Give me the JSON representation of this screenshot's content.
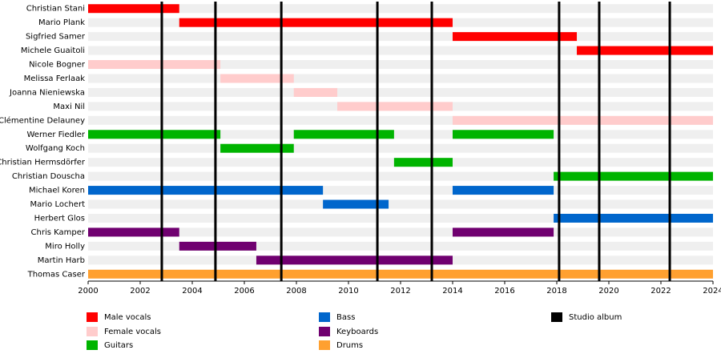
{
  "chart_data": {
    "type": "timeline",
    "categories": [
      "Christian Stani",
      "Mario Plank",
      "Sigfried Samer",
      "Michele Guaitoli",
      "Nicole Bogner",
      "Melissa Ferlaak",
      "Joanna Nieniewska",
      "Maxi Nil",
      "Clémentine Delauney",
      "Werner Fiedler",
      "Wolfgang Koch",
      "Christian Hermsdörfer",
      "Christian Douscha",
      "Michael Koren",
      "Mario Lochert",
      "Herbert Glos",
      "Chris Kamper",
      "Miro Holly",
      "Martin Harb",
      "Thomas Caser"
    ],
    "series": [
      {
        "name": "Male vocals",
        "color": "#ff0000",
        "spans": [
          [
            [
              2000,
              2003.5
            ]
          ],
          [
            [
              2003.5,
              2014
            ]
          ],
          [
            [
              2014,
              2018.77
            ]
          ],
          [
            [
              2018.77,
              2024
            ]
          ],
          [],
          [],
          [],
          [],
          [],
          [],
          [],
          [],
          [],
          [],
          [],
          [],
          [],
          [],
          [],
          []
        ]
      },
      {
        "name": "Female vocals",
        "color": "#ffcccc",
        "spans": [
          [],
          [],
          [],
          [],
          [
            [
              2000,
              2005.08
            ]
          ],
          [
            [
              2005.08,
              2007.9
            ]
          ],
          [
            [
              2007.9,
              2009.57
            ]
          ],
          [
            [
              2009.57,
              2014
            ]
          ],
          [
            [
              2014,
              2024
            ]
          ],
          [],
          [],
          [],
          [],
          [],
          [],
          [],
          [],
          [],
          [],
          []
        ]
      },
      {
        "name": "Guitars",
        "color": "#00b400",
        "spans": [
          [],
          [],
          [],
          [],
          [],
          [],
          [],
          [],
          [],
          [
            [
              2000,
              2005.08
            ],
            [
              2007.9,
              2011.75
            ],
            [
              2014,
              2017.88
            ]
          ],
          [
            [
              2005.08,
              2007.9
            ]
          ],
          [
            [
              2011.75,
              2014
            ]
          ],
          [
            [
              2017.88,
              2024
            ]
          ],
          [],
          [],
          [],
          [],
          [],
          [],
          []
        ]
      },
      {
        "name": "Bass",
        "color": "#0066cc",
        "spans": [
          [],
          [],
          [],
          [],
          [],
          [],
          [],
          [],
          [],
          [],
          [],
          [],
          [],
          [
            [
              2000,
              2009.02
            ],
            [
              2014,
              2017.88
            ]
          ],
          [
            [
              2009.02,
              2011.54
            ]
          ],
          [
            [
              2017.88,
              2024
            ]
          ],
          [],
          [],
          [],
          []
        ]
      },
      {
        "name": "Keyboards",
        "color": "#700070",
        "spans": [
          [],
          [],
          [],
          [],
          [],
          [],
          [],
          [],
          [],
          [],
          [],
          [],
          [],
          [],
          [],
          [],
          [
            [
              2000,
              2003.5
            ],
            [
              2014,
              2017.88
            ]
          ],
          [
            [
              2003.5,
              2006.46
            ]
          ],
          [
            [
              2006.46,
              2014
            ]
          ],
          []
        ]
      },
      {
        "name": "Drums",
        "color": "#ffa030",
        "spans": [
          [],
          [],
          [],
          [],
          [],
          [],
          [],
          [],
          [],
          [],
          [],
          [],
          [],
          [],
          [],
          [],
          [],
          [],
          [],
          [
            [
              2000,
              2024
            ]
          ]
        ]
      }
    ],
    "albums": {
      "name": "Studio album",
      "color": "#000000",
      "x": [
        2002.83,
        2004.89,
        2007.42,
        2011.11,
        2013.2,
        2018.09,
        2019.63,
        2022.34
      ]
    },
    "xlim": [
      2000,
      2024
    ],
    "xticks": [
      2000,
      2002,
      2004,
      2006,
      2008,
      2010,
      2012,
      2014,
      2016,
      2018,
      2020,
      2022,
      2024
    ]
  }
}
